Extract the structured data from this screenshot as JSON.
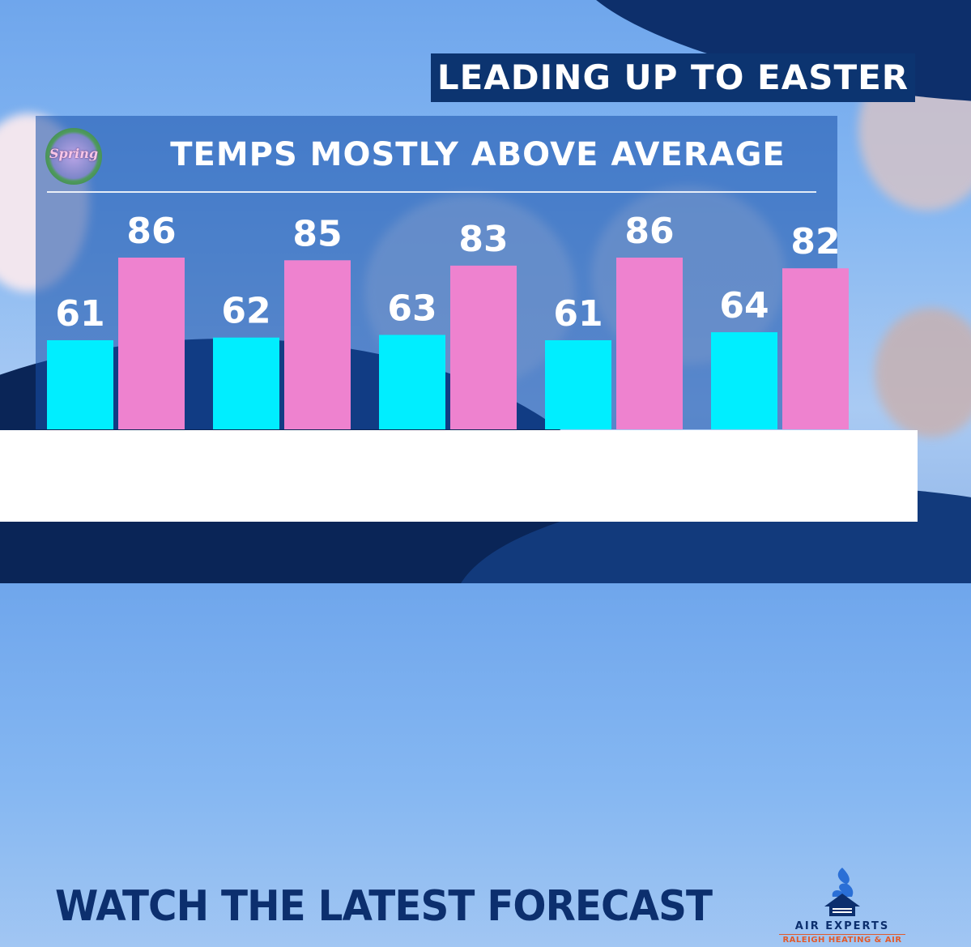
{
  "header": {
    "title": "LEADING UP TO EASTER"
  },
  "badge": {
    "text": "Spring"
  },
  "chart_data": {
    "type": "bar",
    "title": "TEMPS MOSTLY ABOVE AVERAGE",
    "xlabel": "",
    "ylabel": "",
    "grid": false,
    "categories": [
      "",
      "",
      "",
      "",
      ""
    ],
    "series": [
      {
        "values": [
          61,
          62,
          63,
          61,
          64
        ],
        "color": "#00eeff"
      },
      {
        "values": [
          86,
          85,
          83,
          86,
          82
        ],
        "color": "#ee82cf"
      }
    ]
  },
  "banner": {
    "text": "WATCH THE LATEST FORECAST"
  },
  "sponsor": {
    "name": "AIR EXPERTS",
    "subtitle": "RALEIGH HEATING & AIR"
  },
  "colors": {
    "title_bg": "#0c3470",
    "banner_text": "#0c2f6e",
    "sponsor_accent": "#e25a2b"
  }
}
